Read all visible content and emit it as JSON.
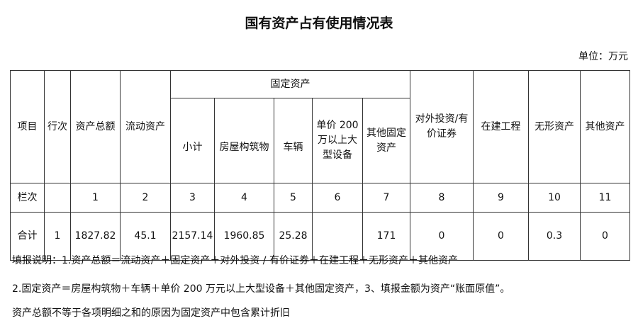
{
  "title": "国有资产占有使用情况表",
  "unit": "单位：万元",
  "table": {
    "headers": {
      "item": "项目",
      "row_no": "行次",
      "total_assets": "资产总额",
      "current_assets": "流动资产",
      "fixed_assets": "固定资产",
      "fixed_sub": [
        "小计",
        "房屋构筑物",
        "车辆",
        "单价 200 万以上大型设备",
        "其他固定资产"
      ],
      "investment": "对外投资/有价证券",
      "construction": "在建工程",
      "intangible": "无形资产",
      "other": "其他资产"
    },
    "column_row": {
      "label": "栏次",
      "row_no": "",
      "values": [
        "1",
        "2",
        "3",
        "4",
        "5",
        "6",
        "7",
        "8",
        "9",
        "10",
        "11"
      ]
    },
    "total_row": {
      "label": "合计",
      "row_no": "1",
      "values": [
        "1827.82",
        "45.1",
        "2157.14",
        "1960.85",
        "25.28",
        "",
        "171",
        "0",
        "0",
        "0.3",
        "0"
      ]
    }
  },
  "notes": [
    "填报说明：1.资产总额＝流动资产＋固定资产＋对外投资 / 有价证券＋在建工程＋无形资产＋其他资产",
    "2.固定资产＝房屋构筑物＋车辆＋单价 200 万元以上大型设备＋其他固定资产，3、填报金额为资产“账面原值”。",
    "资产总额不等于各项明细之和的原因为固定资产中包含累计折旧"
  ]
}
